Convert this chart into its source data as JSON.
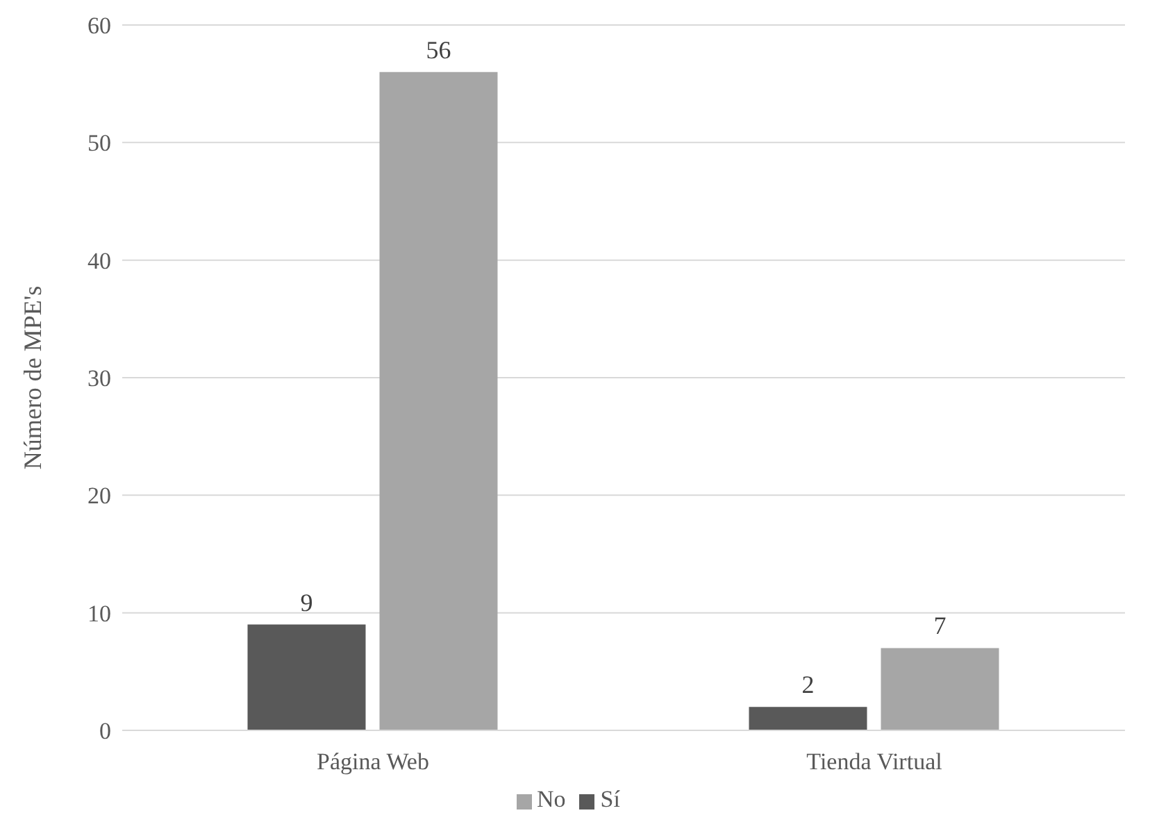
{
  "chart_data": {
    "type": "bar",
    "ylabel": "Número de MPE's",
    "categories": [
      "Página Web",
      "Tienda Virtual"
    ],
    "series": [
      {
        "name": "Sí",
        "color": "#595959",
        "values": [
          9,
          2
        ]
      },
      {
        "name": "No",
        "color": "#a6a6a6",
        "values": [
          56,
          7
        ]
      }
    ],
    "ylim": [
      0,
      60
    ],
    "yticks": [
      0,
      10,
      20,
      30,
      40,
      50,
      60
    ],
    "grid": "y",
    "legend": "bottom",
    "data_labels": true
  }
}
